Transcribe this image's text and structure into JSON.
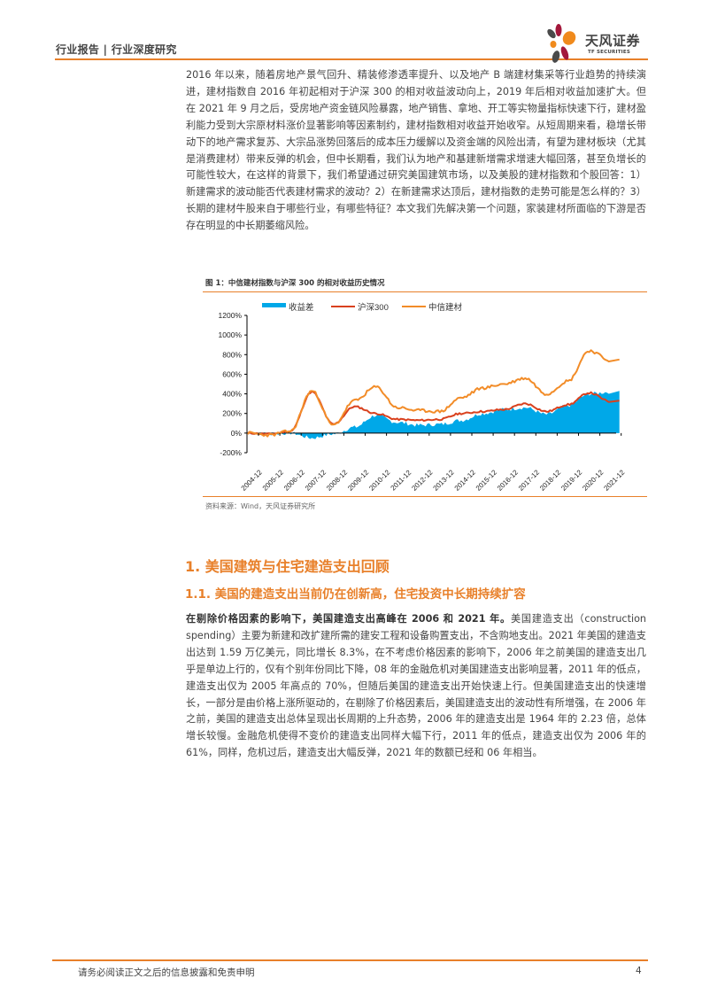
{
  "header": {
    "title": "行业报告 | 行业深度研究",
    "logo_cn": "天风证券",
    "logo_en": "TF SECURITIES"
  },
  "intro_paragraph": "2016 年以来，随着房地产景气回升、精装修渗透率提升、以及地产 B 端建材集采等行业趋势的持续演进，建材指数自 2016 年初起相对于沪深 300 的相对收益波动向上，2019 年后相对收益加速扩大。但在 2021 年 9 月之后，受房地产资金链风险暴露，地产销售、拿地、开工等实物量指标快速下行，建材盈利能力受到大宗原材料涨价显著影响等因素制约，建材指数相对收益开始收窄。从短周期来看，稳增长带动下的地产需求复苏、大宗品涨势回落后的成本压力缓解以及资金端的风险出清，有望为建材板块（尤其是消费建材）带来反弹的机会，但中长期看，我们认为地产和基建新增需求增速大幅回落，甚至负增长的可能性较大，在这样的背景下，我们希望通过研究美国建筑市场，以及美股的建材指数和个股回答：1）新建需求的波动能否代表建材需求的波动？2）在新建需求达顶后，建材指数的走势可能是怎么样的？3）长期的建材牛股来自于哪些行业，有哪些特征？本文我们先解决第一个问题，家装建材所面临的下游是否存在明显的中长期萎缩风险。",
  "figure": {
    "title": "图 1：中信建材指数与沪深 300 的相对收益历史情况",
    "source": "资料来源：Wind，天风证券研究所"
  },
  "chart_data": {
    "type": "line",
    "title": "中信建材指数与沪深 300 的相对收益历史情况",
    "xlabel": "",
    "ylabel": "",
    "ylim": [
      -200,
      1200
    ],
    "yticks": [
      "1200%",
      "1000%",
      "800%",
      "600%",
      "400%",
      "200%",
      "0%",
      "-200%"
    ],
    "legend_position": "top",
    "grid": false,
    "categories": [
      "2004-12",
      "2005-12",
      "2006-12",
      "2007-12",
      "2008-12",
      "2009-12",
      "2010-12",
      "2011-12",
      "2012-12",
      "2013-12",
      "2014-12",
      "2015-12",
      "2016-12",
      "2017-12",
      "2018-12",
      "2019-12",
      "2020-12",
      "2021-12"
    ],
    "series": [
      {
        "name": "收益差",
        "style": "area",
        "color": "#00a8e8",
        "values": [
          0,
          -10,
          0,
          -50,
          -10,
          60,
          180,
          110,
          80,
          90,
          130,
          200,
          240,
          260,
          190,
          280,
          400,
          420
        ]
      },
      {
        "name": "沪深300",
        "style": "line",
        "color": "#d9411e",
        "values": [
          0,
          -10,
          20,
          420,
          90,
          270,
          200,
          140,
          130,
          140,
          200,
          220,
          240,
          300,
          220,
          290,
          410,
          320
        ]
      },
      {
        "name": "中信建材",
        "style": "line",
        "color": "#f28c28",
        "values": [
          0,
          -20,
          20,
          430,
          80,
          330,
          470,
          260,
          230,
          220,
          360,
          460,
          500,
          560,
          400,
          530,
          840,
          740
        ]
      }
    ]
  },
  "section1": {
    "heading": "1. 美国建筑与住宅建造支出回顾",
    "subheading": "1.1. 美国的建造支出当前仍在创新高，住宅投资中长期持续扩容",
    "lead_bold": "在剔除价格因素的影响下，美国建造支出高峰在 2006 和 2021 年。",
    "paragraph": "美国建造支出（construction spending）主要为新建和改扩建所需的建安工程和设备购置支出，不含购地支出。2021 年美国的建造支出达到 1.59 万亿美元，同比增长 8.3%，在不考虑价格因素的影响下，2006 年之前美国的建造支出几乎是单边上行的，仅有个别年份同比下降，08 年的金融危机对美国建造支出影响显著，2011 年的低点，建造支出仅为 2005 年高点的 70%，但随后美国的建造支出开始快速上行。但美国建造支出的快速增长，一部分是由价格上涨所驱动的，在剔除了价格因素后，美国建造支出的波动性有所增强，在 2006 年之前，美国的建造支出总体呈现出长周期的上升态势，2006 年的建造支出是 1964 年的 2.23 倍，总体增长较慢。金融危机使得不变价的建造支出同样大幅下行，2011 年的低点，建造支出仅为 2006 年的 61%，同样，危机过后，建造支出大幅反弹，2021 年的数额已经和 06 年相当。"
  },
  "footer": {
    "disclaimer": "请务必阅读正文之后的信息披露和免责申明",
    "page_number": "4"
  }
}
